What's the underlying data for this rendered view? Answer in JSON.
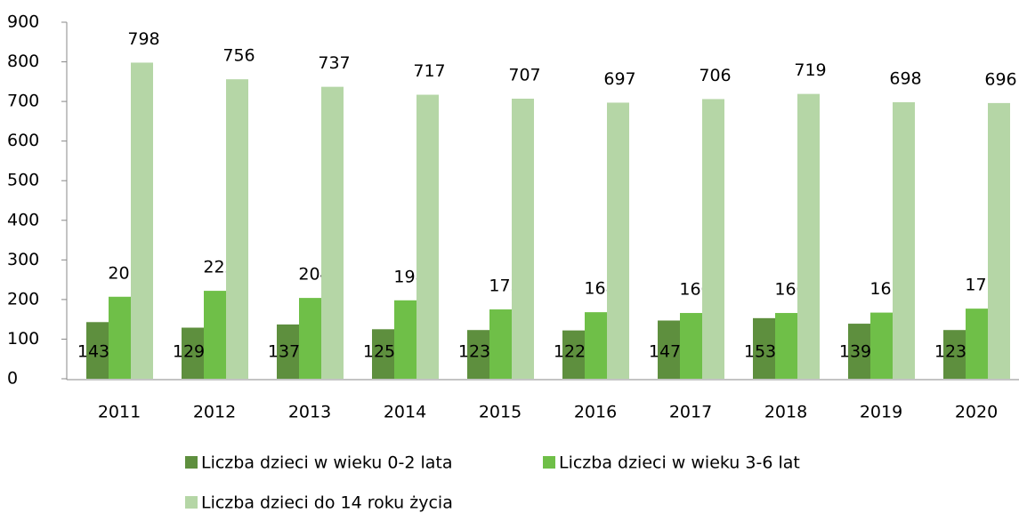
{
  "chart_data": {
    "type": "bar",
    "categories": [
      "2011",
      "2012",
      "2013",
      "2014",
      "2015",
      "2016",
      "2017",
      "2018",
      "2019",
      "2020"
    ],
    "series": [
      {
        "name": "Liczba dzieci w wieku 0-2 lata",
        "color": "#5e8f3e",
        "values": [
          143,
          129,
          137,
          125,
          123,
          122,
          147,
          153,
          139,
          123
        ]
      },
      {
        "name": "Liczba dzieci w wieku 3-6 lat",
        "color": "#6fbf48",
        "values": [
          207,
          222,
          204,
          198,
          175,
          168,
          166,
          166,
          167,
          177
        ]
      },
      {
        "name": "Liczba dzieci do 14 roku życia",
        "color": "#b5d6a6",
        "values": [
          798,
          756,
          737,
          717,
          707,
          697,
          706,
          719,
          698,
          696
        ]
      }
    ],
    "ylim": [
      0,
      900
    ],
    "yticks": [
      0,
      100,
      200,
      300,
      400,
      500,
      600,
      700,
      800,
      900
    ],
    "legend": "bottom"
  }
}
